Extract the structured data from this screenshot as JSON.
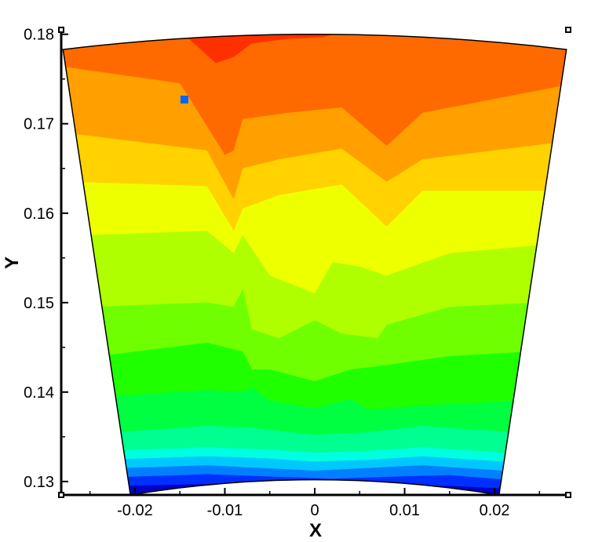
{
  "chart_data": {
    "type": "heatmap",
    "title": "",
    "xlabel": "X",
    "ylabel": "Y",
    "xlim": [
      -0.0282,
      0.0282
    ],
    "ylim": [
      0.1285,
      0.1805
    ],
    "x_ticks": [
      -0.02,
      -0.01,
      0,
      0.01,
      0.02
    ],
    "x_tick_labels": [
      "-0.02",
      "-0.01",
      "0",
      "0.01",
      "0.02"
    ],
    "y_ticks": [
      0.13,
      0.14,
      0.15,
      0.16,
      0.17,
      0.18
    ],
    "y_tick_labels": [
      "0.13",
      "0.14",
      "0.15",
      "0.16",
      "0.17",
      "0.18"
    ],
    "domain": {
      "shape": "annular sector",
      "inner_edge_y_at_center": 0.1302,
      "outer_edge_y_at_center": 0.18,
      "corners": {
        "outer_left": [
          -0.028,
          0.1783
        ],
        "outer_right": [
          0.028,
          0.1783
        ],
        "inner_left": [
          -0.0205,
          0.1285
        ],
        "inner_right": [
          0.0205,
          0.1285
        ]
      }
    },
    "grid": false,
    "legend": "none",
    "colormap_low_to_high": [
      "#0000c8",
      "#0030ff",
      "#0080ff",
      "#00c8ff",
      "#00ffe0",
      "#00ff90",
      "#00ff40",
      "#20ff00",
      "#70ff00",
      "#b0ff00",
      "#eeff00",
      "#ffd200",
      "#ffa000",
      "#ff6a00",
      "#ff3000"
    ],
    "contour_bands": [
      {
        "level": 1,
        "color": "#0000c8",
        "boundary": [
          [
            -0.021,
            0.1285
          ],
          [
            -0.021,
            0.1295
          ],
          [
            -0.012,
            0.1297
          ],
          [
            -0.004,
            0.13
          ],
          [
            0.002,
            0.13
          ],
          [
            0.008,
            0.1295
          ],
          [
            0.015,
            0.1295
          ],
          [
            0.021,
            0.1292
          ],
          [
            0.021,
            0.1285
          ]
        ]
      },
      {
        "level": 2,
        "color": "#0030ff",
        "boundary": [
          [
            -0.021,
            0.1285
          ],
          [
            -0.021,
            0.1305
          ],
          [
            -0.012,
            0.1308
          ],
          [
            -0.004,
            0.1305
          ],
          [
            0.002,
            0.1303
          ],
          [
            0.008,
            0.1305
          ],
          [
            0.015,
            0.1307
          ],
          [
            0.021,
            0.1302
          ],
          [
            0.021,
            0.1285
          ]
        ]
      },
      {
        "level": 3,
        "color": "#0080ff",
        "boundary": [
          [
            -0.021,
            0.1285
          ],
          [
            -0.021,
            0.1315
          ],
          [
            -0.012,
            0.1318
          ],
          [
            -0.006,
            0.1315
          ],
          [
            0.0,
            0.1312
          ],
          [
            0.006,
            0.1315
          ],
          [
            0.012,
            0.1318
          ],
          [
            0.021,
            0.1312
          ],
          [
            0.021,
            0.1285
          ]
        ]
      },
      {
        "level": 4,
        "color": "#00c8ff",
        "boundary": [
          [
            -0.021,
            0.1285
          ],
          [
            -0.021,
            0.1325
          ],
          [
            -0.012,
            0.1328
          ],
          [
            -0.006,
            0.1326
          ],
          [
            0.0,
            0.1322
          ],
          [
            0.006,
            0.1324
          ],
          [
            0.012,
            0.1328
          ],
          [
            0.021,
            0.1322
          ],
          [
            0.021,
            0.1285
          ]
        ]
      },
      {
        "level": 5,
        "color": "#00ffe0",
        "boundary": [
          [
            -0.021,
            0.1285
          ],
          [
            -0.021,
            0.1335
          ],
          [
            -0.012,
            0.1338
          ],
          [
            -0.006,
            0.1336
          ],
          [
            0.0,
            0.1332
          ],
          [
            0.006,
            0.1334
          ],
          [
            0.012,
            0.1338
          ],
          [
            0.021,
            0.1332
          ],
          [
            0.021,
            0.1285
          ]
        ]
      },
      {
        "level": 6,
        "color": "#00ff90",
        "boundary": [
          [
            -0.022,
            0.1285
          ],
          [
            -0.022,
            0.1355
          ],
          [
            -0.012,
            0.1362
          ],
          [
            -0.007,
            0.136
          ],
          [
            0.0,
            0.1352
          ],
          [
            0.006,
            0.1355
          ],
          [
            0.012,
            0.1362
          ],
          [
            0.022,
            0.1355
          ],
          [
            0.022,
            0.1285
          ]
        ]
      },
      {
        "level": 7,
        "color": "#00ff40",
        "boundary": [
          [
            -0.023,
            0.1285
          ],
          [
            -0.023,
            0.1395
          ],
          [
            -0.012,
            0.1402
          ],
          [
            -0.008,
            0.14
          ],
          [
            -0.007,
            0.1405
          ],
          [
            -0.005,
            0.139
          ],
          [
            0.0,
            0.1382
          ],
          [
            0.004,
            0.1392
          ],
          [
            0.006,
            0.138
          ],
          [
            0.012,
            0.1385
          ],
          [
            0.023,
            0.139
          ],
          [
            0.023,
            0.1285
          ]
        ]
      },
      {
        "level": 8,
        "color": "#20ff00",
        "boundary": [
          [
            -0.024,
            0.1285
          ],
          [
            -0.024,
            0.144
          ],
          [
            -0.012,
            0.1455
          ],
          [
            -0.008,
            0.1445
          ],
          [
            -0.007,
            0.1425
          ],
          [
            -0.005,
            0.1425
          ],
          [
            0.0,
            0.1412
          ],
          [
            0.004,
            0.1425
          ],
          [
            0.008,
            0.143
          ],
          [
            0.015,
            0.144
          ],
          [
            0.024,
            0.1445
          ],
          [
            0.024,
            0.1285
          ]
        ]
      },
      {
        "level": 9,
        "color": "#70ff00",
        "boundary": [
          [
            -0.025,
            0.1285
          ],
          [
            -0.025,
            0.1495
          ],
          [
            -0.012,
            0.15
          ],
          [
            -0.009,
            0.1495
          ],
          [
            -0.008,
            0.1515
          ],
          [
            -0.007,
            0.147
          ],
          [
            -0.004,
            0.146
          ],
          [
            0.0,
            0.148
          ],
          [
            0.003,
            0.1465
          ],
          [
            0.007,
            0.146
          ],
          [
            0.008,
            0.1475
          ],
          [
            0.015,
            0.1495
          ],
          [
            0.025,
            0.15
          ],
          [
            0.025,
            0.1285
          ]
        ]
      },
      {
        "level": 10,
        "color": "#b0ff00",
        "boundary": [
          [
            -0.026,
            0.1285
          ],
          [
            -0.026,
            0.1575
          ],
          [
            -0.012,
            0.158
          ],
          [
            -0.009,
            0.1555
          ],
          [
            -0.008,
            0.1575
          ],
          [
            -0.005,
            0.153
          ],
          [
            0.0,
            0.151
          ],
          [
            0.002,
            0.1545
          ],
          [
            0.005,
            0.154
          ],
          [
            0.008,
            0.153
          ],
          [
            0.015,
            0.1555
          ],
          [
            0.026,
            0.1565
          ],
          [
            0.026,
            0.1285
          ]
        ]
      },
      {
        "level": 11,
        "color": "#eeff00",
        "boundary": [
          [
            -0.027,
            0.1285
          ],
          [
            -0.027,
            0.1635
          ],
          [
            -0.012,
            0.163
          ],
          [
            -0.009,
            0.158
          ],
          [
            -0.008,
            0.1605
          ],
          [
            -0.004,
            0.162
          ],
          [
            0.003,
            0.1632
          ],
          [
            0.008,
            0.1585
          ],
          [
            0.012,
            0.1625
          ],
          [
            0.027,
            0.1625
          ],
          [
            0.027,
            0.1285
          ]
        ]
      },
      {
        "level": 12,
        "color": "#ffd200",
        "boundary": [
          [
            -0.028,
            0.1285
          ],
          [
            -0.028,
            0.169
          ],
          [
            -0.012,
            0.167
          ],
          [
            -0.009,
            0.1615
          ],
          [
            -0.008,
            0.165
          ],
          [
            -0.004,
            0.166
          ],
          [
            0.003,
            0.1672
          ],
          [
            0.008,
            0.1635
          ],
          [
            0.012,
            0.166
          ],
          [
            0.028,
            0.168
          ],
          [
            0.028,
            0.1285
          ]
        ]
      },
      {
        "level": 13,
        "color": "#ffa000",
        "boundary": [
          [
            -0.029,
            0.1285
          ],
          [
            -0.029,
            0.1765
          ],
          [
            -0.015,
            0.1745
          ],
          [
            -0.01,
            0.1665
          ],
          [
            -0.009,
            0.167
          ],
          [
            -0.008,
            0.1705
          ],
          [
            -0.003,
            0.1712
          ],
          [
            0.003,
            0.1718
          ],
          [
            0.008,
            0.1675
          ],
          [
            0.012,
            0.1712
          ],
          [
            0.029,
            0.1745
          ],
          [
            0.029,
            0.1285
          ]
        ]
      },
      {
        "level": 14,
        "color": "#ff6a00",
        "boundary": [
          [
            -0.019,
            0.1812
          ],
          [
            -0.019,
            0.1795
          ],
          [
            -0.014,
            0.175
          ],
          [
            -0.01,
            0.17
          ],
          [
            -0.009,
            0.1735
          ],
          [
            -0.007,
            0.1765
          ],
          [
            -0.003,
            0.1775
          ],
          [
            0.002,
            0.177
          ],
          [
            0.007,
            0.175
          ],
          [
            0.009,
            0.1742
          ],
          [
            0.01,
            0.176
          ],
          [
            0.011,
            0.1795
          ],
          [
            0.011,
            0.1812
          ]
        ]
      },
      {
        "level": 15,
        "color": "#ff3000",
        "boundary": [
          [
            -0.014,
            0.1812
          ],
          [
            -0.014,
            0.1795
          ],
          [
            -0.011,
            0.1768
          ],
          [
            -0.009,
            0.1775
          ],
          [
            -0.007,
            0.179
          ],
          [
            -0.003,
            0.1795
          ],
          [
            0.001,
            0.1797
          ],
          [
            0.004,
            0.1806
          ],
          [
            0.004,
            0.1812
          ]
        ]
      }
    ],
    "markers": [
      {
        "x": -0.0145,
        "y": 0.1727,
        "color": "#0066ff",
        "shape": "square"
      }
    ]
  }
}
